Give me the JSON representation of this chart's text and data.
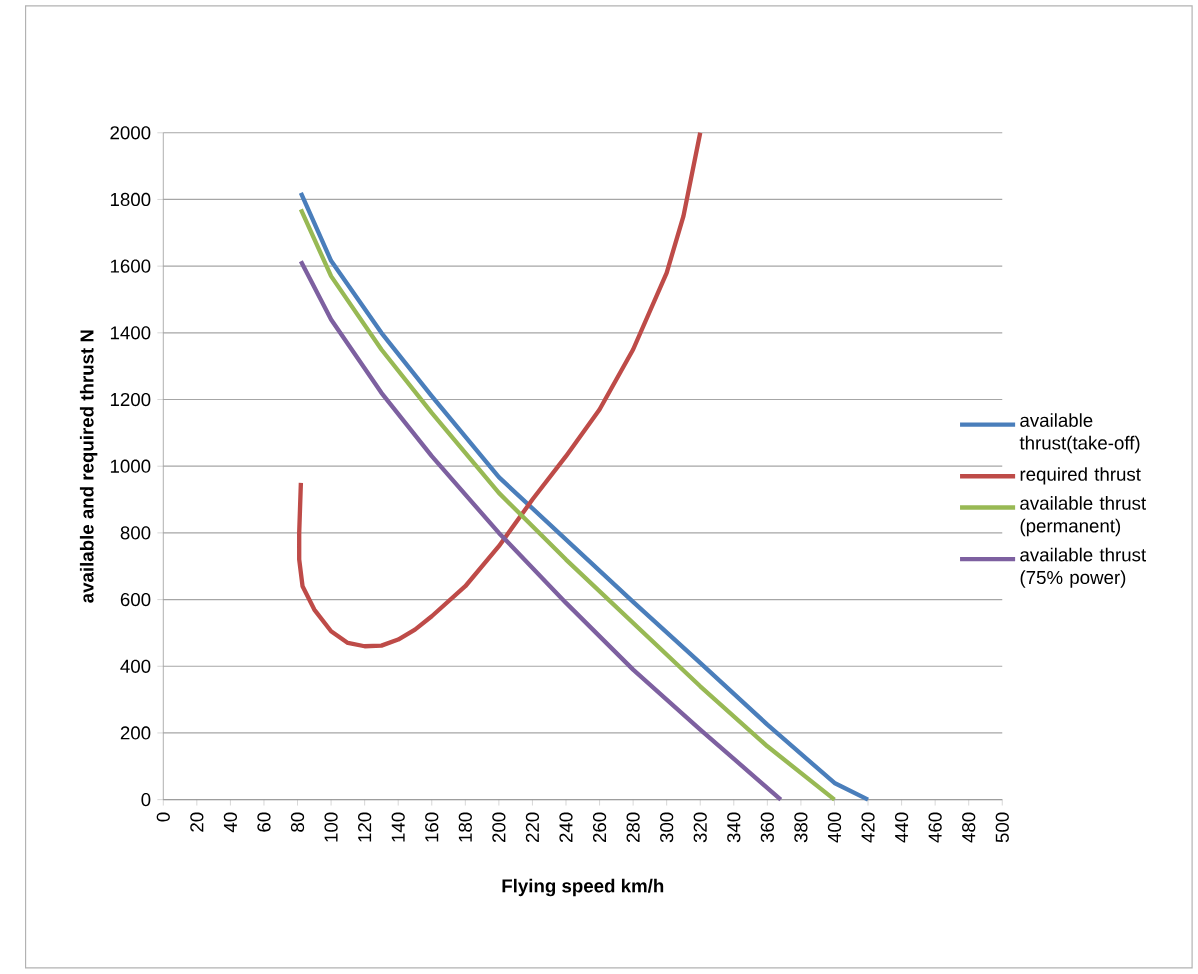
{
  "chart_data": {
    "type": "line",
    "xlabel": "Flying speed km/h",
    "ylabel": "available and required thrust  N",
    "xlim": [
      0,
      500
    ],
    "xticks": [
      0,
      20,
      40,
      60,
      80,
      100,
      120,
      140,
      160,
      180,
      200,
      220,
      240,
      260,
      280,
      300,
      320,
      340,
      360,
      380,
      400,
      420,
      440,
      460,
      480,
      500
    ],
    "ylim": [
      0,
      2000
    ],
    "yticks": [
      0,
      200,
      400,
      600,
      800,
      1000,
      1200,
      1400,
      1600,
      1800,
      2000
    ],
    "grid": "y",
    "legend": "right",
    "marker": "none",
    "line_style": "solid",
    "series": [
      {
        "name": "available thrust(take-off)",
        "color": "#4a7ebb",
        "x": [
          82,
          100,
          130,
          160,
          200,
          240,
          280,
          320,
          360,
          400,
          420
        ],
        "values": [
          1820,
          1616,
          1400,
          1210,
          967,
          780,
          593,
          410,
          225,
          50,
          0
        ]
      },
      {
        "name": "required thrust",
        "color": "#be4b48",
        "x": [
          82,
          81,
          81,
          83,
          90,
          100,
          110,
          120,
          130,
          140,
          150,
          160,
          180,
          200,
          220,
          240,
          260,
          280,
          300,
          310,
          320
        ],
        "values": [
          950,
          800,
          720,
          640,
          570,
          505,
          470,
          460,
          462,
          480,
          510,
          550,
          640,
          760,
          900,
          1030,
          1170,
          1350,
          1580,
          1750,
          2000
        ]
      },
      {
        "name": "available thrust (permanent)",
        "color": "#98b954",
        "x": [
          82,
          100,
          130,
          160,
          200,
          240,
          280,
          320,
          360,
          400
        ],
        "values": [
          1770,
          1570,
          1350,
          1160,
          920,
          720,
          530,
          340,
          160,
          0
        ]
      },
      {
        "name": "available thrust (75% power)",
        "color": "#7d60a0",
        "x": [
          82,
          100,
          130,
          160,
          200,
          240,
          280,
          320,
          368
        ],
        "values": [
          1615,
          1440,
          1220,
          1030,
          800,
          590,
          390,
          210,
          0
        ]
      }
    ]
  }
}
